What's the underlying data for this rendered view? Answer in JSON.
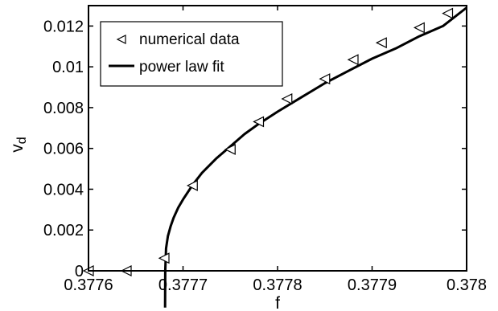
{
  "chart_data": {
    "type": "line",
    "xlabel": "f",
    "ylabel": "v",
    "ylabel_subscript": "d",
    "xlim": [
      0.3776,
      0.378
    ],
    "ylim": [
      0,
      0.013
    ],
    "x_ticks": [
      0.3776,
      0.3777,
      0.3778,
      0.3779,
      0.378
    ],
    "x_tick_labels": [
      "0.3776",
      "0.3777",
      "0.3778",
      "0.3779",
      "0.378"
    ],
    "y_ticks": [
      0,
      0.002,
      0.004,
      0.006,
      0.008,
      0.01,
      0.012
    ],
    "y_tick_labels": [
      "0",
      "0.002",
      "0.004",
      "0.006",
      "0.008",
      "0.01",
      "0.012"
    ],
    "grid": false,
    "legend_position": "top-left",
    "colors": {
      "line": "#000000",
      "marker": "#000000",
      "background": "#ffffff"
    },
    "series": [
      {
        "name": "numerical data",
        "type": "scatter",
        "marker": "left-triangle",
        "x": [
          0.3776,
          0.37764,
          0.37768,
          0.37771,
          0.37775,
          0.37778,
          0.37781,
          0.37785,
          0.37788,
          0.37791,
          0.37795,
          0.37798
        ],
        "y": [
          0.0,
          0.0,
          0.00062,
          0.00418,
          0.00595,
          0.00731,
          0.00843,
          0.00941,
          0.01035,
          0.01118,
          0.01192,
          0.01262
        ]
      },
      {
        "name": "power law fit",
        "type": "line",
        "x": [
          0.377681,
          0.3776812,
          0.377682,
          0.377684,
          0.377687,
          0.37769,
          0.377695,
          0.3777,
          0.37771,
          0.37772,
          0.377735,
          0.37775,
          0.377765,
          0.37778,
          0.3778,
          0.377825,
          0.37785,
          0.377875,
          0.3779,
          0.377925,
          0.37795,
          0.377975,
          0.378
        ],
        "y": [
          -0.0018,
          0.0,
          0.0011,
          0.0017,
          0.0022,
          0.0026,
          0.0031,
          0.0035,
          0.0042,
          0.0048,
          0.0055,
          0.0061,
          0.0067,
          0.0072,
          0.0078,
          0.0085,
          0.0092,
          0.0098,
          0.0104,
          0.0109,
          0.0115,
          0.012,
          0.0129
        ]
      }
    ]
  }
}
